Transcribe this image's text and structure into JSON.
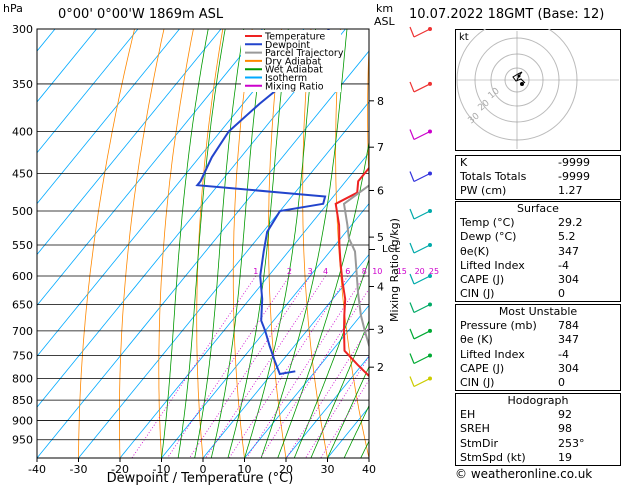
{
  "header": {
    "location": "0°00'  0°00'W  1869m  ASL",
    "date": "10.07.2022  18GMT  (Base: 12)",
    "hpa_label": "hPa",
    "km_label": "km",
    "asl_label": "ASL"
  },
  "chart_data": {
    "type": "line",
    "title": "",
    "xlabel": "Dewpoint / Temperature (°C)",
    "ylabel_right": "Mixing Ratio (g/kg)",
    "xlim": [
      -40,
      40
    ],
    "pressure_range": [
      300,
      1000
    ],
    "pressure_ticks": [
      300,
      350,
      400,
      450,
      500,
      550,
      600,
      650,
      700,
      750,
      800,
      850,
      900,
      950
    ],
    "temperature_ticks": [
      -40,
      -30,
      -20,
      -10,
      0,
      10,
      20,
      30,
      40
    ],
    "km_ticks": [
      {
        "km": "8",
        "p": 367
      },
      {
        "km": "7",
        "p": 418
      },
      {
        "km": "6",
        "p": 472
      },
      {
        "km": "5",
        "p": 538
      },
      {
        "km": "4",
        "p": 618
      },
      {
        "km": "3",
        "p": 697
      },
      {
        "km": "2",
        "p": 775
      }
    ],
    "lcl_label": "LCL",
    "lcl_p": 557,
    "mixing_ratio_labels": [
      "1",
      "2",
      "3",
      "4",
      "6",
      "8",
      "10",
      "15",
      "20",
      "25"
    ],
    "legend": [
      {
        "name": "Temperature",
        "color": "#ee2222"
      },
      {
        "name": "Dewpoint",
        "color": "#2244cc"
      },
      {
        "name": "Parcel Trajectory",
        "color": "#999999"
      },
      {
        "name": "Dry Adiabat",
        "color": "#ff8800"
      },
      {
        "name": "Wet Adiabat",
        "color": "#009900"
      },
      {
        "name": "Isotherm",
        "color": "#00aaff"
      },
      {
        "name": "Mixing Ratio",
        "color": "#cc00cc"
      }
    ],
    "series": [
      {
        "name": "Temperature",
        "points": [
          [
            -18,
            380
          ],
          [
            -18,
            400
          ],
          [
            -17,
            430
          ],
          [
            -17,
            460
          ],
          [
            -15,
            475
          ],
          [
            -18,
            490
          ],
          [
            -13,
            520
          ],
          [
            -9,
            550
          ],
          [
            -5,
            580
          ],
          [
            -1,
            610
          ],
          [
            3,
            640
          ],
          [
            6,
            670
          ],
          [
            9,
            700
          ],
          [
            13,
            740
          ],
          [
            19,
            770
          ],
          [
            25,
            800
          ],
          [
            29.2,
            784
          ]
        ]
      },
      {
        "name": "Dewpoint",
        "points": [
          [
            -54,
            300
          ],
          [
            -52,
            330
          ],
          [
            -56,
            370
          ],
          [
            -58,
            400
          ],
          [
            -57,
            430
          ],
          [
            -55,
            460
          ],
          [
            -55,
            465
          ],
          [
            -33,
            475
          ],
          [
            -22,
            480
          ],
          [
            -21,
            490
          ],
          [
            -30,
            500
          ],
          [
            -29,
            530
          ],
          [
            -26,
            560
          ],
          [
            -22,
            600
          ],
          [
            -17,
            640
          ],
          [
            -13,
            680
          ],
          [
            -10,
            700
          ],
          [
            -6,
            730
          ],
          [
            -2,
            760
          ],
          [
            2,
            790
          ],
          [
            5.2,
            784
          ]
        ]
      },
      {
        "name": "Parcel Trajectory",
        "points": [
          [
            -20,
            370
          ],
          [
            -17,
            400
          ],
          [
            -15,
            430
          ],
          [
            -13,
            460
          ],
          [
            -16,
            490
          ],
          [
            -11,
            520
          ],
          [
            -8,
            540
          ],
          [
            -4,
            560
          ],
          [
            0,
            590
          ],
          [
            5,
            630
          ],
          [
            10,
            670
          ],
          [
            14,
            700
          ],
          [
            18,
            730
          ],
          [
            23,
            760
          ],
          [
            29,
            790
          ]
        ]
      }
    ]
  },
  "hodograph": {
    "unit": "kt",
    "ring_labels": [
      "10",
      "20",
      "30"
    ]
  },
  "indices": [
    {
      "label": "K",
      "value": "-9999"
    },
    {
      "label": "Totals Totals",
      "value": "-9999"
    },
    {
      "label": "PW (cm)",
      "value": "1.27"
    }
  ],
  "surface": {
    "title": "Surface",
    "rows": [
      {
        "label": "Temp (°C)",
        "value": "29.2"
      },
      {
        "label": "Dewp (°C)",
        "value": "5.2"
      },
      {
        "label": "θe(K)",
        "value": "347"
      },
      {
        "label": "Lifted Index",
        "value": "-4"
      },
      {
        "label": "CAPE (J)",
        "value": "304"
      },
      {
        "label": "CIN (J)",
        "value": "0"
      }
    ]
  },
  "most_unstable": {
    "title": "Most Unstable",
    "rows": [
      {
        "label": "Pressure (mb)",
        "value": "784"
      },
      {
        "label": "θe (K)",
        "value": "347"
      },
      {
        "label": "Lifted Index",
        "value": "-4"
      },
      {
        "label": "CAPE (J)",
        "value": "304"
      },
      {
        "label": "CIN (J)",
        "value": "0"
      }
    ]
  },
  "hodograph_table": {
    "title": "Hodograph",
    "rows": [
      {
        "label": "EH",
        "value": "92"
      },
      {
        "label": "SREH",
        "value": "98"
      },
      {
        "label": "StmDir",
        "value": "253°"
      },
      {
        "label": "StmSpd (kt)",
        "value": "19"
      }
    ]
  },
  "footer": "© weatheronline.co.uk"
}
